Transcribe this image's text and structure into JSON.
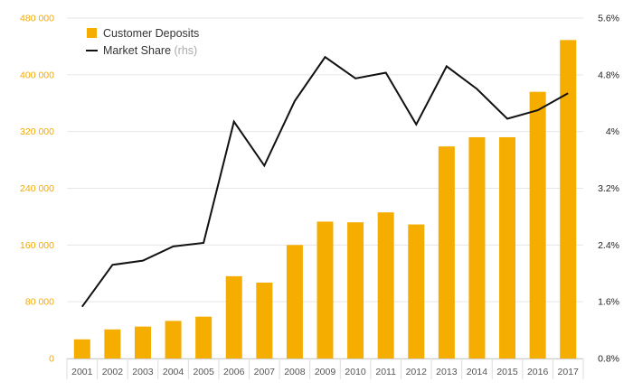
{
  "chart_data": {
    "type": "bar",
    "categories": [
      "2001",
      "2002",
      "2003",
      "2004",
      "2005",
      "2006",
      "2007",
      "2008",
      "2009",
      "2010",
      "2011",
      "2012",
      "2013",
      "2014",
      "2015",
      "2016",
      "2017"
    ],
    "series": [
      {
        "name": "Customer Deposits",
        "chart_type": "bar",
        "axis": "left",
        "color": "#f5ad00",
        "values": [
          27000,
          41000,
          45000,
          53000,
          59000,
          116000,
          107000,
          160000,
          193000,
          192000,
          206000,
          189000,
          299000,
          312000,
          312000,
          376000,
          449000
        ]
      },
      {
        "name": "Market Share",
        "legend_suffix": "(rhs)",
        "chart_type": "line",
        "axis": "right",
        "color": "#111111",
        "values": [
          1.53,
          2.12,
          2.18,
          2.38,
          2.43,
          4.14,
          3.52,
          4.43,
          5.05,
          4.75,
          4.83,
          4.1,
          4.92,
          4.6,
          4.18,
          4.3,
          4.54
        ]
      }
    ],
    "y_left": {
      "ylim": [
        0,
        480000
      ],
      "ticks": [
        0,
        80000,
        160000,
        240000,
        320000,
        400000,
        480000
      ],
      "tick_labels": [
        "0",
        "80 000",
        "160 000",
        "240 000",
        "320 000",
        "400 000",
        "480 000"
      ]
    },
    "y_right": {
      "ylim": [
        0.8,
        5.6
      ],
      "ticks": [
        0.8,
        1.6,
        2.4,
        3.2,
        4,
        4.8,
        5.6
      ],
      "tick_labels": [
        "0.8%",
        "1.6%",
        "2.4%",
        "3.2%",
        "4%",
        "4.8%",
        "5.6%"
      ]
    },
    "title": "",
    "xlabel": "",
    "ylabel": "",
    "grid": true,
    "legend_position": "top-left"
  }
}
